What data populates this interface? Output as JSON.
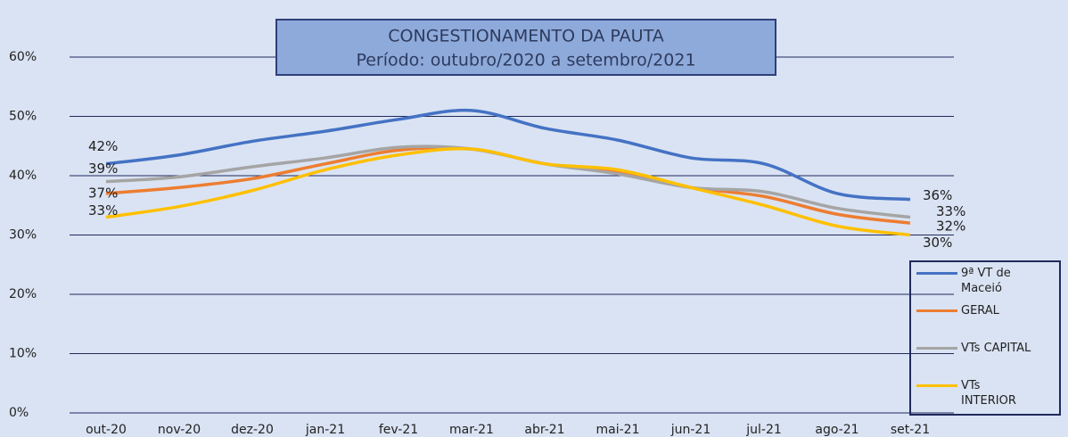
{
  "chart_data": {
    "type": "line",
    "title": "CONGESTIONAMENTO DA PAUTA",
    "subtitle": "Período: outubro/2020 a setembro/2021",
    "categories": [
      "out-20",
      "nov-20",
      "dez-20",
      "jan-21",
      "fev-21",
      "mar-21",
      "abr-21",
      "mai-21",
      "jun-21",
      "jul-21",
      "ago-21",
      "set-21"
    ],
    "series": [
      {
        "name": "9ª VT de Maceió",
        "color": "#4472c4",
        "values": [
          42,
          43.5,
          45.8,
          47.5,
          49.5,
          51,
          48,
          46,
          43,
          42,
          37,
          36
        ],
        "value_labels": [
          "42%",
          null,
          null,
          null,
          null,
          null,
          null,
          null,
          null,
          null,
          null,
          "36%"
        ]
      },
      {
        "name": "GERAL",
        "color": "#ed7d31",
        "values": [
          37,
          38,
          39.5,
          42,
          44.3,
          44.5,
          42,
          40.5,
          38,
          36.5,
          33.5,
          32
        ],
        "value_labels": [
          "37%",
          null,
          null,
          null,
          null,
          null,
          null,
          null,
          null,
          null,
          null,
          "32%"
        ]
      },
      {
        "name": "VTs CAPITAL",
        "color": "#a5a5a5",
        "values": [
          39,
          39.8,
          41.5,
          43,
          44.8,
          44.5,
          42,
          40.3,
          38,
          37.3,
          34.5,
          33
        ],
        "value_labels": [
          "39%",
          null,
          null,
          null,
          null,
          null,
          null,
          null,
          null,
          null,
          null,
          "33%"
        ]
      },
      {
        "name": "VTs INTERIOR",
        "color": "#ffc000",
        "values": [
          33,
          34.8,
          37.5,
          41,
          43.5,
          44.5,
          42,
          41,
          38,
          35,
          31.5,
          30
        ],
        "value_labels": [
          "33%",
          null,
          null,
          null,
          null,
          null,
          null,
          null,
          null,
          null,
          null,
          "30%"
        ]
      }
    ],
    "ylim": [
      0,
      60
    ],
    "yticks": [
      {
        "value": 0,
        "label": "0%"
      },
      {
        "value": 10,
        "label": "10%"
      },
      {
        "value": 20,
        "label": "20%"
      },
      {
        "value": 30,
        "label": "30%"
      },
      {
        "value": 40,
        "label": "40%"
      },
      {
        "value": 50,
        "label": "50%"
      },
      {
        "value": 60,
        "label": "60%"
      }
    ],
    "grid": true,
    "legend": "right"
  }
}
